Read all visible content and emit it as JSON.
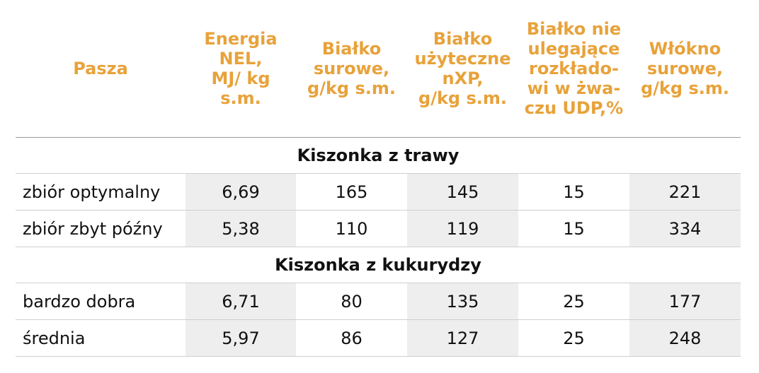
{
  "colors": {
    "header_text": "#E8A23A",
    "shade": "#EEEEEE",
    "text": "#111111"
  },
  "headers": [
    "Pasza",
    "Energia NEL, MJ/ kg s.m.",
    "Białko surowe, g/kg s.m.",
    "Białko użyteczne nXP, g/kg s.m.",
    "Białko nie ulegające rozkłado-wi w żwa-czu UDP,%",
    "Włókno surowe, g/kg s.m."
  ],
  "headers_lines": [
    [
      "Pasza"
    ],
    [
      "Energia",
      "NEL,",
      "MJ/ kg",
      "s.m."
    ],
    [
      "Białko",
      "surowe,",
      "g/kg s.m."
    ],
    [
      "Białko",
      "użyteczne",
      "nXP,",
      "g/kg s.m."
    ],
    [
      "Białko nie",
      "ulegające",
      "rozkłado-",
      "wi w żwa-",
      "czu UDP,%"
    ],
    [
      "Włókno",
      "surowe,",
      "g/kg s.m."
    ]
  ],
  "sections": [
    {
      "title": "Kiszonka z trawy",
      "rows": [
        {
          "label": "zbiór optymalny",
          "values": [
            "6,69",
            "165",
            "145",
            "15",
            "221"
          ]
        },
        {
          "label": "zbiór zbyt późny",
          "values": [
            "5,38",
            "110",
            "119",
            "15",
            "334"
          ]
        }
      ]
    },
    {
      "title": "Kiszonka z kukurydzy",
      "rows": [
        {
          "label": "bardzo dobra",
          "values": [
            "6,71",
            "80",
            "135",
            "25",
            "177"
          ]
        },
        {
          "label": "średnia",
          "values": [
            "5,97",
            "86",
            "127",
            "25",
            "248"
          ]
        }
      ]
    }
  ]
}
